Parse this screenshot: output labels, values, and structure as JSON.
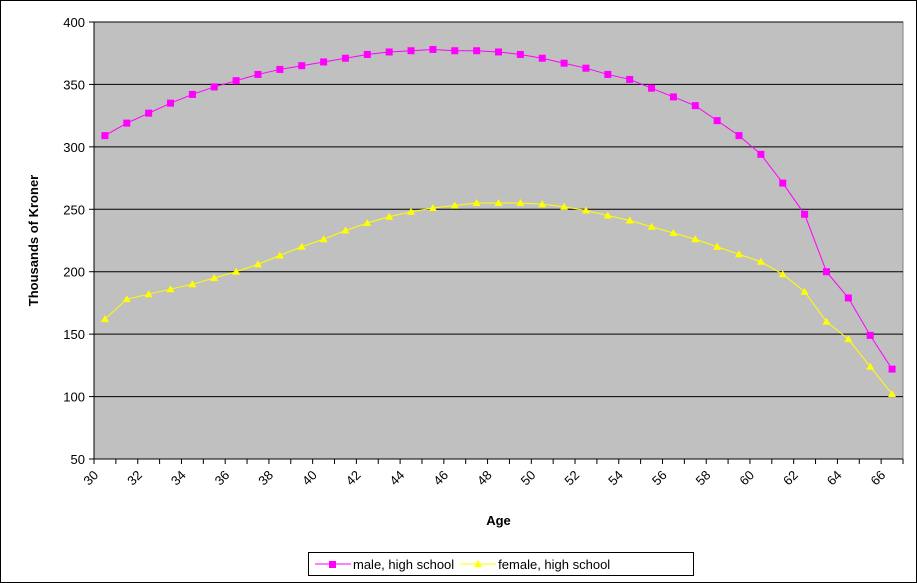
{
  "chart_data": {
    "type": "line",
    "title": "",
    "xlabel": "Age",
    "ylabel": "Thousands of Kroner",
    "xlim": [
      30,
      67
    ],
    "ylim": [
      50,
      400
    ],
    "yticks": [
      50,
      100,
      150,
      200,
      250,
      300,
      350,
      400
    ],
    "xticks": [
      30,
      32,
      34,
      36,
      38,
      40,
      42,
      44,
      46,
      48,
      50,
      52,
      54,
      56,
      58,
      60,
      62,
      64,
      66
    ],
    "grid": "horizontal",
    "plot_background": "#c0c0c0",
    "legend_position": "bottom",
    "x": [
      30,
      31,
      32,
      33,
      34,
      35,
      36,
      37,
      38,
      39,
      40,
      41,
      42,
      43,
      44,
      45,
      46,
      47,
      48,
      49,
      50,
      51,
      52,
      53,
      54,
      55,
      56,
      57,
      58,
      59,
      60,
      61,
      62,
      63,
      64,
      65,
      66
    ],
    "series": [
      {
        "name": "male, high school",
        "color": "#ff00ff",
        "marker": "square",
        "values": [
          309,
          319,
          327,
          335,
          342,
          348,
          353,
          358,
          362,
          365,
          368,
          371,
          374,
          376,
          377,
          378,
          377,
          377,
          376,
          374,
          371,
          367,
          363,
          358,
          354,
          347,
          340,
          333,
          321,
          309,
          294,
          271,
          246,
          200,
          179,
          149,
          122
        ]
      },
      {
        "name": "female, high school",
        "color": "#ffff00",
        "marker": "triangle",
        "values": [
          162,
          178,
          182,
          186,
          190,
          195,
          200,
          206,
          213,
          220,
          226,
          233,
          239,
          244,
          248,
          251,
          253,
          255,
          255,
          255,
          254,
          252,
          249,
          245,
          241,
          236,
          231,
          226,
          220,
          214,
          208,
          198,
          184,
          160,
          146,
          124,
          102
        ]
      }
    ]
  }
}
